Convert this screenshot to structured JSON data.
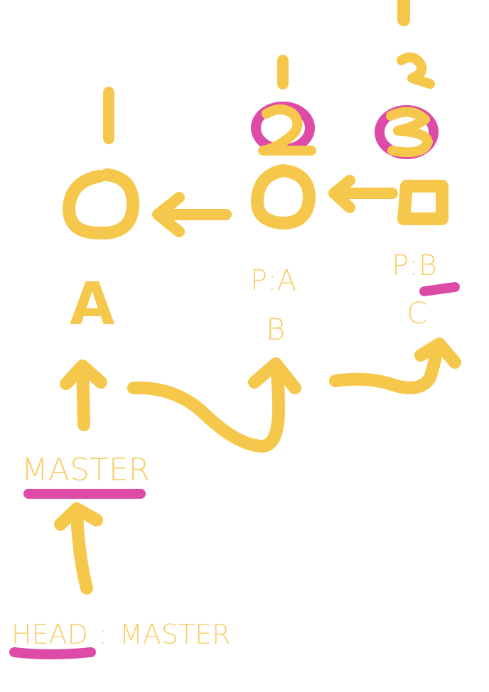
{
  "commits": [
    {
      "letter": "A",
      "parent": "",
      "mark": "1"
    },
    {
      "letter": "B",
      "parent": "P:A",
      "mark": "2"
    },
    {
      "letter": "C",
      "parent": "P:B",
      "mark": "3"
    }
  ],
  "branch_label": "MASTER",
  "head_label": "HEAD",
  "head_separator": ":",
  "head_target": "MASTER",
  "colors": {
    "ink": "#f5c84c",
    "highlight": "#dd4aa8",
    "text": "#f7d06e",
    "background": "#ffffff"
  }
}
